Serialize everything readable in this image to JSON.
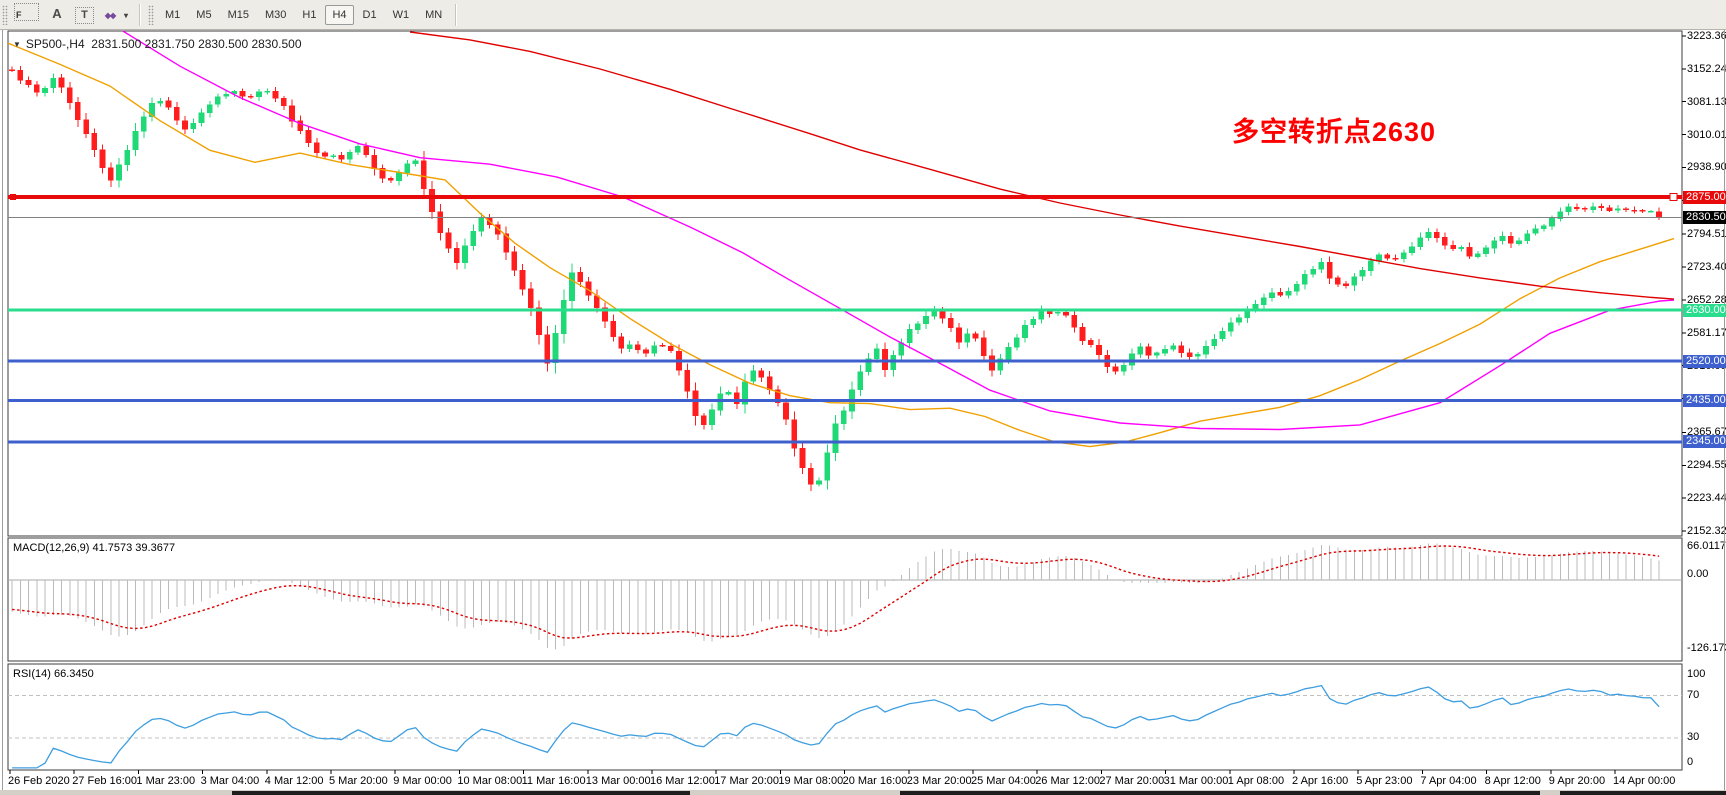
{
  "toolbar": {
    "icons": [
      {
        "name": "grid-f-icon",
        "glyph": "F",
        "style": "gridf"
      },
      {
        "name": "text-label-icon",
        "glyph": "A",
        "style": ""
      },
      {
        "name": "text-tool-icon",
        "glyph": "T",
        "style": "boxed"
      },
      {
        "name": "arrows-tool-icon",
        "glyph": "◆◆",
        "style": "arrows"
      },
      {
        "name": "dropdown-caret-icon",
        "glyph": "▾",
        "style": "caret"
      }
    ],
    "timeframes": [
      "M1",
      "M5",
      "M15",
      "M30",
      "H1",
      "H4",
      "D1",
      "W1",
      "MN"
    ],
    "active_timeframe": "H4"
  },
  "title": {
    "dropdown_glyph": "▼",
    "symbol": "SP500-,H4",
    "ohlc": "2831.500 2831.750 2830.500 2830.500"
  },
  "annotation": {
    "text": "多空转折点2630",
    "color": "#FF0000"
  },
  "indicators": {
    "macd": {
      "label": "MACD(12,26,9)",
      "values": "41.7573 39.3677",
      "axis_labels": [
        "66.0117",
        "0.00",
        "-126.173"
      ]
    },
    "rsi": {
      "label": "RSI(14)",
      "value": "66.3450",
      "axis_labels": [
        "100",
        "70",
        "30",
        "0"
      ],
      "levels": [
        70,
        30
      ]
    }
  },
  "chart_data": {
    "type": "candlestick",
    "symbol": "SP500-",
    "timeframe": "H4",
    "ohlc": {
      "open": 2831.5,
      "high": 2831.75,
      "low": 2830.5,
      "close": 2830.5
    },
    "price_ticks": [
      "3223.360",
      "3152.245",
      "3081.130",
      "3010.015",
      "2938.900",
      "2867.785",
      "2794.515",
      "2723.400",
      "2652.285",
      "2581.170",
      "2510.055",
      "2438.940",
      "2365.670",
      "2294.555",
      "2223.440",
      "2152.325"
    ],
    "time_labels": [
      "26 Feb 2020",
      "27 Feb 16:00",
      "1 Mar 23:00",
      "3 Mar 04:00",
      "4 Mar 12:00",
      "5 Mar 20:00",
      "9 Mar 00:00",
      "10 Mar 08:00",
      "11 Mar 16:00",
      "13 Mar 00:00",
      "16 Mar 12:00",
      "17 Mar 20:00",
      "19 Mar 08:00",
      "20 Mar 16:00",
      "23 Mar 20:00",
      "25 Mar 04:00",
      "26 Mar 12:00",
      "27 Mar 20:00",
      "31 Mar 00:00",
      "1 Apr 08:00",
      "2 Apr 16:00",
      "5 Apr 23:00",
      "7 Apr 04:00",
      "8 Apr 12:00",
      "9 Apr 20:00",
      "14 Apr 00:00"
    ],
    "hlines": [
      {
        "price": 2875.0,
        "label": "2875.000",
        "color": "#E80A0A",
        "width": 4,
        "badge_bg": "#E80A0A",
        "handles": true
      },
      {
        "price": 2830.5,
        "label": "2830.500",
        "color": "#808080",
        "width": 1,
        "badge_bg": "#000000"
      },
      {
        "price": 2630.0,
        "label": "2630.000",
        "color": "#28DE8E",
        "width": 3,
        "badge_bg": "#28DE8E"
      },
      {
        "price": 2520.0,
        "label": "2520.000",
        "color": "#3E60CE",
        "width": 3,
        "badge_bg": "#3E60CE"
      },
      {
        "price": 2435.0,
        "label": "2435.000",
        "color": "#3E60CE",
        "width": 3,
        "badge_bg": "#3E60CE"
      },
      {
        "price": 2345.0,
        "label": "2345.000",
        "color": "#3E60CE",
        "width": 3,
        "badge_bg": "#3E60CE"
      }
    ],
    "moving_averages": {
      "fast": {
        "color": "#F0A000",
        "points": [
          [
            8,
            3208
          ],
          [
            60,
            3162
          ],
          [
            110,
            3115
          ],
          [
            160,
            3040
          ],
          [
            210,
            2976
          ],
          [
            255,
            2950
          ],
          [
            300,
            2970
          ],
          [
            350,
            2945
          ],
          [
            400,
            2928
          ],
          [
            445,
            2912
          ],
          [
            480,
            2840
          ],
          [
            515,
            2775
          ],
          [
            550,
            2722
          ],
          [
            590,
            2672
          ],
          [
            630,
            2612
          ],
          [
            670,
            2558
          ],
          [
            710,
            2512
          ],
          [
            750,
            2472
          ],
          [
            790,
            2445
          ],
          [
            830,
            2430
          ],
          [
            870,
            2428
          ],
          [
            910,
            2415
          ],
          [
            950,
            2418
          ],
          [
            985,
            2400
          ],
          [
            1020,
            2370
          ],
          [
            1055,
            2345
          ],
          [
            1090,
            2335
          ],
          [
            1125,
            2345
          ],
          [
            1160,
            2365
          ],
          [
            1200,
            2390
          ],
          [
            1240,
            2405
          ],
          [
            1280,
            2420
          ],
          [
            1320,
            2445
          ],
          [
            1360,
            2480
          ],
          [
            1400,
            2520
          ],
          [
            1440,
            2558
          ],
          [
            1480,
            2600
          ],
          [
            1520,
            2655
          ],
          [
            1560,
            2700
          ],
          [
            1600,
            2735
          ],
          [
            1640,
            2762
          ],
          [
            1674,
            2785
          ]
        ]
      },
      "mid": {
        "color": "#FF00FF",
        "points": [
          [
            123,
            3234
          ],
          [
            180,
            3158
          ],
          [
            240,
            3090
          ],
          [
            300,
            3034
          ],
          [
            360,
            2990
          ],
          [
            420,
            2960
          ],
          [
            490,
            2946
          ],
          [
            557,
            2918
          ],
          [
            623,
            2875
          ],
          [
            690,
            2810
          ],
          [
            743,
            2754
          ],
          [
            790,
            2695
          ],
          [
            843,
            2630
          ],
          [
            890,
            2572
          ],
          [
            940,
            2515
          ],
          [
            990,
            2457
          ],
          [
            1050,
            2412
          ],
          [
            1120,
            2386
          ],
          [
            1200,
            2374
          ],
          [
            1280,
            2372
          ],
          [
            1360,
            2382
          ],
          [
            1440,
            2430
          ],
          [
            1500,
            2510
          ],
          [
            1550,
            2580
          ],
          [
            1610,
            2630
          ],
          [
            1660,
            2650
          ],
          [
            1674,
            2652
          ]
        ]
      },
      "slow": {
        "color": "#E00000",
        "points": [
          [
            410,
            3232
          ],
          [
            470,
            3215
          ],
          [
            530,
            3190
          ],
          [
            600,
            3152
          ],
          [
            670,
            3108
          ],
          [
            740,
            3060
          ],
          [
            810,
            3012
          ],
          [
            860,
            2977
          ],
          [
            930,
            2935
          ],
          [
            1000,
            2892
          ],
          [
            1060,
            2862
          ],
          [
            1120,
            2836
          ],
          [
            1180,
            2812
          ],
          [
            1240,
            2790
          ],
          [
            1300,
            2768
          ],
          [
            1360,
            2744
          ],
          [
            1420,
            2720
          ],
          [
            1480,
            2700
          ],
          [
            1540,
            2682
          ],
          [
            1600,
            2668
          ],
          [
            1650,
            2658
          ],
          [
            1674,
            2654
          ]
        ]
      }
    },
    "close_anchors": [
      [
        8,
        3150
      ],
      [
        22,
        3118
      ],
      [
        36,
        3098
      ],
      [
        50,
        3135
      ],
      [
        64,
        3090
      ],
      [
        80,
        3018
      ],
      [
        95,
        2958
      ],
      [
        105,
        2902
      ],
      [
        118,
        2952
      ],
      [
        132,
        3022
      ],
      [
        146,
        3072
      ],
      [
        158,
        3088
      ],
      [
        170,
        3048
      ],
      [
        182,
        3022
      ],
      [
        196,
        3052
      ],
      [
        212,
        3092
      ],
      [
        228,
        3102
      ],
      [
        244,
        3090
      ],
      [
        260,
        3108
      ],
      [
        276,
        3082
      ],
      [
        292,
        3028
      ],
      [
        308,
        2980
      ],
      [
        324,
        2962
      ],
      [
        340,
        2958
      ],
      [
        354,
        2988
      ],
      [
        368,
        2948
      ],
      [
        382,
        2902
      ],
      [
        396,
        2932
      ],
      [
        410,
        2962
      ],
      [
        424,
        2868
      ],
      [
        438,
        2788
      ],
      [
        452,
        2728
      ],
      [
        466,
        2792
      ],
      [
        478,
        2832
      ],
      [
        490,
        2808
      ],
      [
        504,
        2748
      ],
      [
        516,
        2692
      ],
      [
        530,
        2618
      ],
      [
        544,
        2512
      ],
      [
        556,
        2622
      ],
      [
        568,
        2712
      ],
      [
        580,
        2678
      ],
      [
        592,
        2638
      ],
      [
        604,
        2598
      ],
      [
        616,
        2545
      ],
      [
        628,
        2558
      ],
      [
        640,
        2528
      ],
      [
        654,
        2565
      ],
      [
        668,
        2538
      ],
      [
        680,
        2478
      ],
      [
        692,
        2398
      ],
      [
        702,
        2382
      ],
      [
        712,
        2438
      ],
      [
        722,
        2462
      ],
      [
        732,
        2428
      ],
      [
        742,
        2478
      ],
      [
        752,
        2508
      ],
      [
        762,
        2472
      ],
      [
        772,
        2438
      ],
      [
        782,
        2398
      ],
      [
        792,
        2318
      ],
      [
        802,
        2268
      ],
      [
        812,
        2238
      ],
      [
        822,
        2308
      ],
      [
        832,
        2388
      ],
      [
        842,
        2422
      ],
      [
        852,
        2478
      ],
      [
        862,
        2518
      ],
      [
        872,
        2548
      ],
      [
        882,
        2498
      ],
      [
        892,
        2542
      ],
      [
        902,
        2578
      ],
      [
        916,
        2608
      ],
      [
        930,
        2632
      ],
      [
        944,
        2598
      ],
      [
        956,
        2558
      ],
      [
        968,
        2588
      ],
      [
        978,
        2542
      ],
      [
        988,
        2502
      ],
      [
        998,
        2528
      ],
      [
        1008,
        2558
      ],
      [
        1018,
        2588
      ],
      [
        1028,
        2612
      ],
      [
        1038,
        2628
      ],
      [
        1048,
        2618
      ],
      [
        1058,
        2632
      ],
      [
        1068,
        2598
      ],
      [
        1078,
        2568
      ],
      [
        1088,
        2552
      ],
      [
        1098,
        2522
      ],
      [
        1108,
        2488
      ],
      [
        1118,
        2508
      ],
      [
        1128,
        2532
      ],
      [
        1138,
        2552
      ],
      [
        1148,
        2528
      ],
      [
        1158,
        2542
      ],
      [
        1168,
        2558
      ],
      [
        1178,
        2538
      ],
      [
        1188,
        2522
      ],
      [
        1198,
        2542
      ],
      [
        1208,
        2562
      ],
      [
        1218,
        2582
      ],
      [
        1228,
        2602
      ],
      [
        1238,
        2622
      ],
      [
        1248,
        2638
      ],
      [
        1258,
        2652
      ],
      [
        1268,
        2668
      ],
      [
        1278,
        2662
      ],
      [
        1288,
        2682
      ],
      [
        1298,
        2698
      ],
      [
        1308,
        2718
      ],
      [
        1318,
        2732
      ],
      [
        1328,
        2692
      ],
      [
        1338,
        2678
      ],
      [
        1348,
        2698
      ],
      [
        1358,
        2718
      ],
      [
        1368,
        2738
      ],
      [
        1378,
        2752
      ],
      [
        1388,
        2732
      ],
      [
        1398,
        2748
      ],
      [
        1408,
        2768
      ],
      [
        1418,
        2788
      ],
      [
        1428,
        2802
      ],
      [
        1438,
        2778
      ],
      [
        1448,
        2758
      ],
      [
        1458,
        2768
      ],
      [
        1468,
        2742
      ],
      [
        1478,
        2758
      ],
      [
        1488,
        2778
      ],
      [
        1498,
        2788
      ],
      [
        1508,
        2772
      ],
      [
        1518,
        2788
      ],
      [
        1528,
        2798
      ],
      [
        1538,
        2812
      ],
      [
        1548,
        2832
      ],
      [
        1558,
        2848
      ],
      [
        1568,
        2858
      ],
      [
        1578,
        2842
      ],
      [
        1588,
        2852
      ],
      [
        1598,
        2848
      ],
      [
        1608,
        2842
      ],
      [
        1618,
        2848
      ],
      [
        1628,
        2843
      ],
      [
        1638,
        2846
      ],
      [
        1648,
        2840
      ],
      [
        1655,
        2830.5
      ]
    ],
    "prehistory": {
      "start": 3390,
      "end": 3160,
      "bars": 30
    },
    "colors": {
      "up": "#1FD977",
      "down": "#FF1D1D",
      "background": "#FFFFFF",
      "panel_border": "#3C3C3C",
      "macd_bar": "#BBBBBB",
      "macd_signal": "#E00000",
      "rsi_line": "#3E9EE0",
      "axis_text": "#000000"
    }
  }
}
